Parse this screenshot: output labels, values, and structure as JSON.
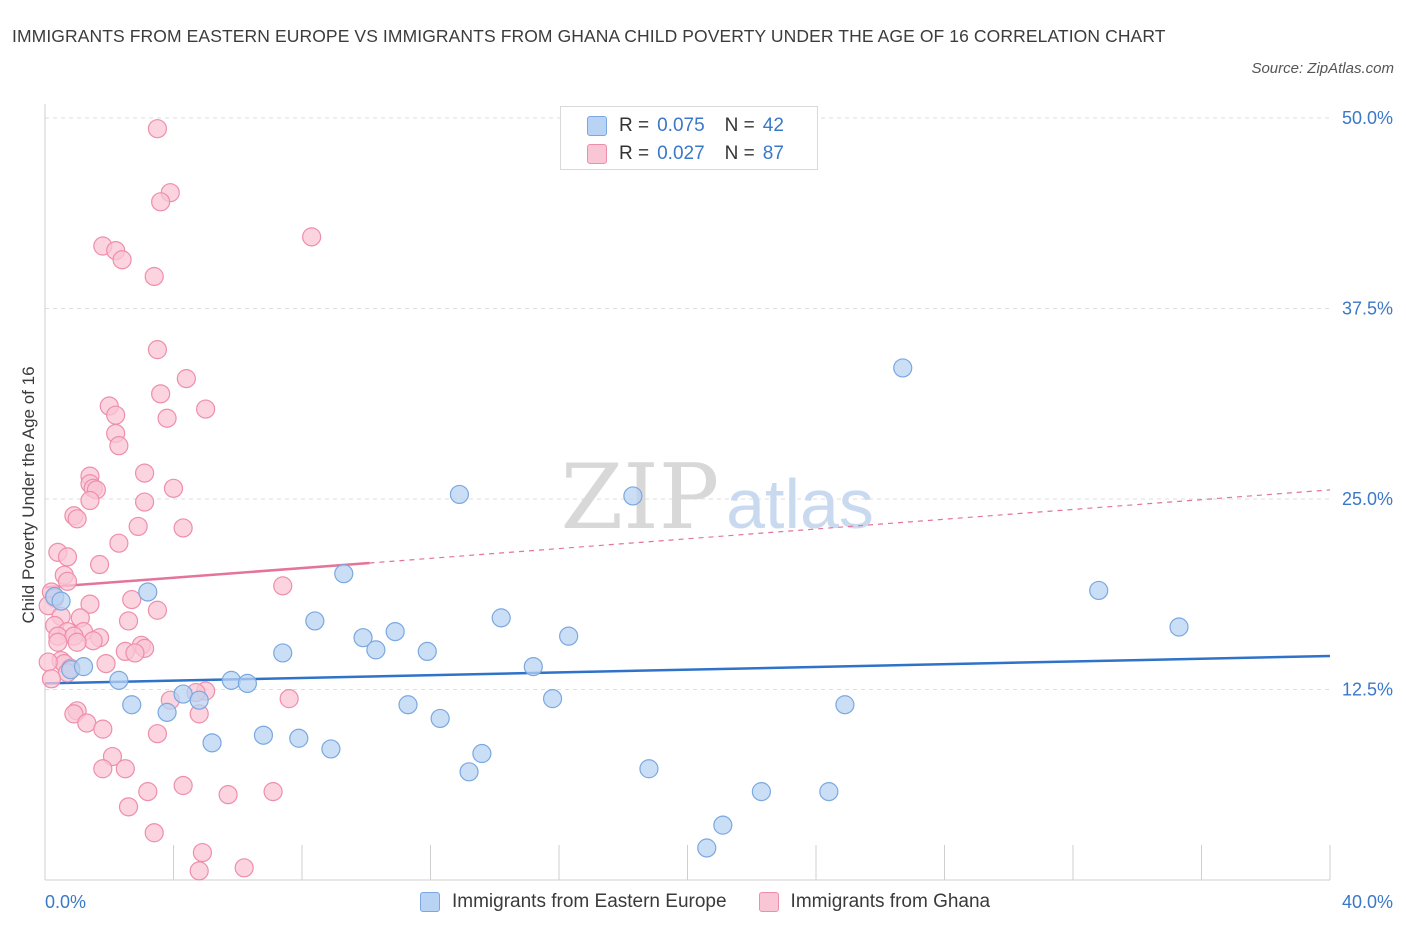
{
  "title": "IMMIGRANTS FROM EASTERN EUROPE VS IMMIGRANTS FROM GHANA CHILD POVERTY UNDER THE AGE OF 16 CORRELATION CHART",
  "source": "Source: ZipAtlas.com",
  "watermark": {
    "zip": "ZIP",
    "atlas": "atlas"
  },
  "legend_top": [
    {
      "r_label": "R =",
      "r_value": "0.075",
      "n_label": "N =",
      "n_value": "42"
    },
    {
      "r_label": "R =",
      "r_value": "0.027",
      "n_label": "N =",
      "n_value": "87"
    }
  ],
  "legend_bottom": [
    "Immigrants from Eastern Europe",
    "Immigrants from Ghana"
  ],
  "colors": {
    "blue_fill": "#b8d3f3",
    "blue_stroke": "#7aa8e0",
    "blue_line": "#2f72c9",
    "pink_fill": "#f9c6d5",
    "pink_stroke": "#ee8eaa",
    "pink_line": "#e5739a",
    "grid": "#dddddd",
    "axis_text": "#3a78c8"
  },
  "chart_data": {
    "type": "scatter",
    "title": "IMMIGRANTS FROM EASTERN EUROPE VS IMMIGRANTS FROM GHANA CHILD POVERTY UNDER THE AGE OF 16 CORRELATION CHART",
    "xlabel": "",
    "ylabel": "Child Poverty Under the Age of 16",
    "xlim": [
      0,
      40
    ],
    "ylim": [
      0,
      50
    ],
    "x_tick_labels": [
      "0.0%",
      "40.0%"
    ],
    "y_tick_labels": [
      "12.5%",
      "25.0%",
      "37.5%",
      "50.0%"
    ],
    "y_ticks": [
      12.5,
      25,
      37.5,
      50
    ],
    "grid": true,
    "legend_position": "top-center",
    "series": [
      {
        "name": "Immigrants from Eastern Europe",
        "color": "blue",
        "trend": {
          "x": [
            0,
            40
          ],
          "y": [
            12.9,
            14.7
          ],
          "dashed_extension": false
        },
        "points": [
          [
            0.3,
            18.6
          ],
          [
            0.8,
            13.8
          ],
          [
            1.2,
            14.0
          ],
          [
            2.3,
            13.1
          ],
          [
            2.7,
            11.5
          ],
          [
            3.2,
            18.9
          ],
          [
            3.8,
            11.0
          ],
          [
            4.3,
            12.2
          ],
          [
            4.8,
            11.8
          ],
          [
            5.2,
            9.0
          ],
          [
            5.8,
            13.1
          ],
          [
            6.3,
            12.9
          ],
          [
            6.8,
            9.5
          ],
          [
            7.4,
            14.9
          ],
          [
            7.9,
            9.3
          ],
          [
            8.4,
            17.0
          ],
          [
            8.9,
            8.6
          ],
          [
            9.3,
            20.1
          ],
          [
            9.9,
            15.9
          ],
          [
            10.3,
            15.1
          ],
          [
            10.9,
            16.3
          ],
          [
            11.3,
            11.5
          ],
          [
            11.9,
            15.0
          ],
          [
            12.3,
            10.6
          ],
          [
            12.9,
            25.3
          ],
          [
            13.2,
            7.1
          ],
          [
            13.6,
            8.3
          ],
          [
            14.2,
            17.2
          ],
          [
            15.2,
            14.0
          ],
          [
            15.8,
            11.9
          ],
          [
            16.3,
            16.0
          ],
          [
            18.3,
            25.2
          ],
          [
            18.8,
            7.3
          ],
          [
            20.6,
            2.1
          ],
          [
            21.1,
            3.6
          ],
          [
            22.3,
            5.8
          ],
          [
            24.4,
            5.8
          ],
          [
            24.9,
            11.5
          ],
          [
            26.7,
            33.6
          ],
          [
            32.8,
            19.0
          ],
          [
            35.3,
            16.6
          ],
          [
            0.5,
            18.3
          ]
        ]
      },
      {
        "name": "Immigrants from Ghana",
        "color": "pink",
        "trend": {
          "x": [
            0,
            10.1
          ],
          "y": [
            19.2,
            20.8
          ],
          "dashed_extension": {
            "x": [
              10.1,
              40
            ],
            "y": [
              20.8,
              25.6
            ]
          }
        },
        "points": [
          [
            3.5,
            49.3
          ],
          [
            3.9,
            45.1
          ],
          [
            3.6,
            44.5
          ],
          [
            8.3,
            42.2
          ],
          [
            1.8,
            41.6
          ],
          [
            2.2,
            41.3
          ],
          [
            2.4,
            40.7
          ],
          [
            3.4,
            39.6
          ],
          [
            3.5,
            34.8
          ],
          [
            4.4,
            32.9
          ],
          [
            3.6,
            31.9
          ],
          [
            2.0,
            31.1
          ],
          [
            5.0,
            30.9
          ],
          [
            2.2,
            30.5
          ],
          [
            3.8,
            30.3
          ],
          [
            2.2,
            29.3
          ],
          [
            2.3,
            28.5
          ],
          [
            3.1,
            26.7
          ],
          [
            1.4,
            26.5
          ],
          [
            1.4,
            26.0
          ],
          [
            1.5,
            25.7
          ],
          [
            1.6,
            25.6
          ],
          [
            4.0,
            25.7
          ],
          [
            1.4,
            24.9
          ],
          [
            3.1,
            24.8
          ],
          [
            0.9,
            23.9
          ],
          [
            1.0,
            23.7
          ],
          [
            2.9,
            23.2
          ],
          [
            4.3,
            23.1
          ],
          [
            2.3,
            22.1
          ],
          [
            0.4,
            21.5
          ],
          [
            0.7,
            21.2
          ],
          [
            1.7,
            20.7
          ],
          [
            0.6,
            20.0
          ],
          [
            0.7,
            19.6
          ],
          [
            7.4,
            19.3
          ],
          [
            0.2,
            18.9
          ],
          [
            0.3,
            18.5
          ],
          [
            2.7,
            18.4
          ],
          [
            1.4,
            18.1
          ],
          [
            0.1,
            18.0
          ],
          [
            3.5,
            17.7
          ],
          [
            0.5,
            17.3
          ],
          [
            1.1,
            17.2
          ],
          [
            2.6,
            17.0
          ],
          [
            0.3,
            16.7
          ],
          [
            0.7,
            16.3
          ],
          [
            1.2,
            16.3
          ],
          [
            0.4,
            16.0
          ],
          [
            0.9,
            16.0
          ],
          [
            1.7,
            15.9
          ],
          [
            1.5,
            15.7
          ],
          [
            1.0,
            15.6
          ],
          [
            0.4,
            15.6
          ],
          [
            3.0,
            15.4
          ],
          [
            3.1,
            15.2
          ],
          [
            2.5,
            15.0
          ],
          [
            2.8,
            14.9
          ],
          [
            0.5,
            14.4
          ],
          [
            0.6,
            14.2
          ],
          [
            1.9,
            14.2
          ],
          [
            0.8,
            13.9
          ],
          [
            0.7,
            13.6
          ],
          [
            5.0,
            12.4
          ],
          [
            4.7,
            12.3
          ],
          [
            7.6,
            11.9
          ],
          [
            3.9,
            11.8
          ],
          [
            1.0,
            11.1
          ],
          [
            0.9,
            10.9
          ],
          [
            4.8,
            10.9
          ],
          [
            1.3,
            10.3
          ],
          [
            1.8,
            9.9
          ],
          [
            3.5,
            9.6
          ],
          [
            2.1,
            8.1
          ],
          [
            1.8,
            7.3
          ],
          [
            2.5,
            7.3
          ],
          [
            4.3,
            6.2
          ],
          [
            3.2,
            5.8
          ],
          [
            5.7,
            5.6
          ],
          [
            7.1,
            5.8
          ],
          [
            2.6,
            4.8
          ],
          [
            3.4,
            3.1
          ],
          [
            4.9,
            1.8
          ],
          [
            6.2,
            0.8
          ],
          [
            4.8,
            0.6
          ],
          [
            0.1,
            14.3
          ],
          [
            0.2,
            13.2
          ]
        ]
      }
    ]
  }
}
